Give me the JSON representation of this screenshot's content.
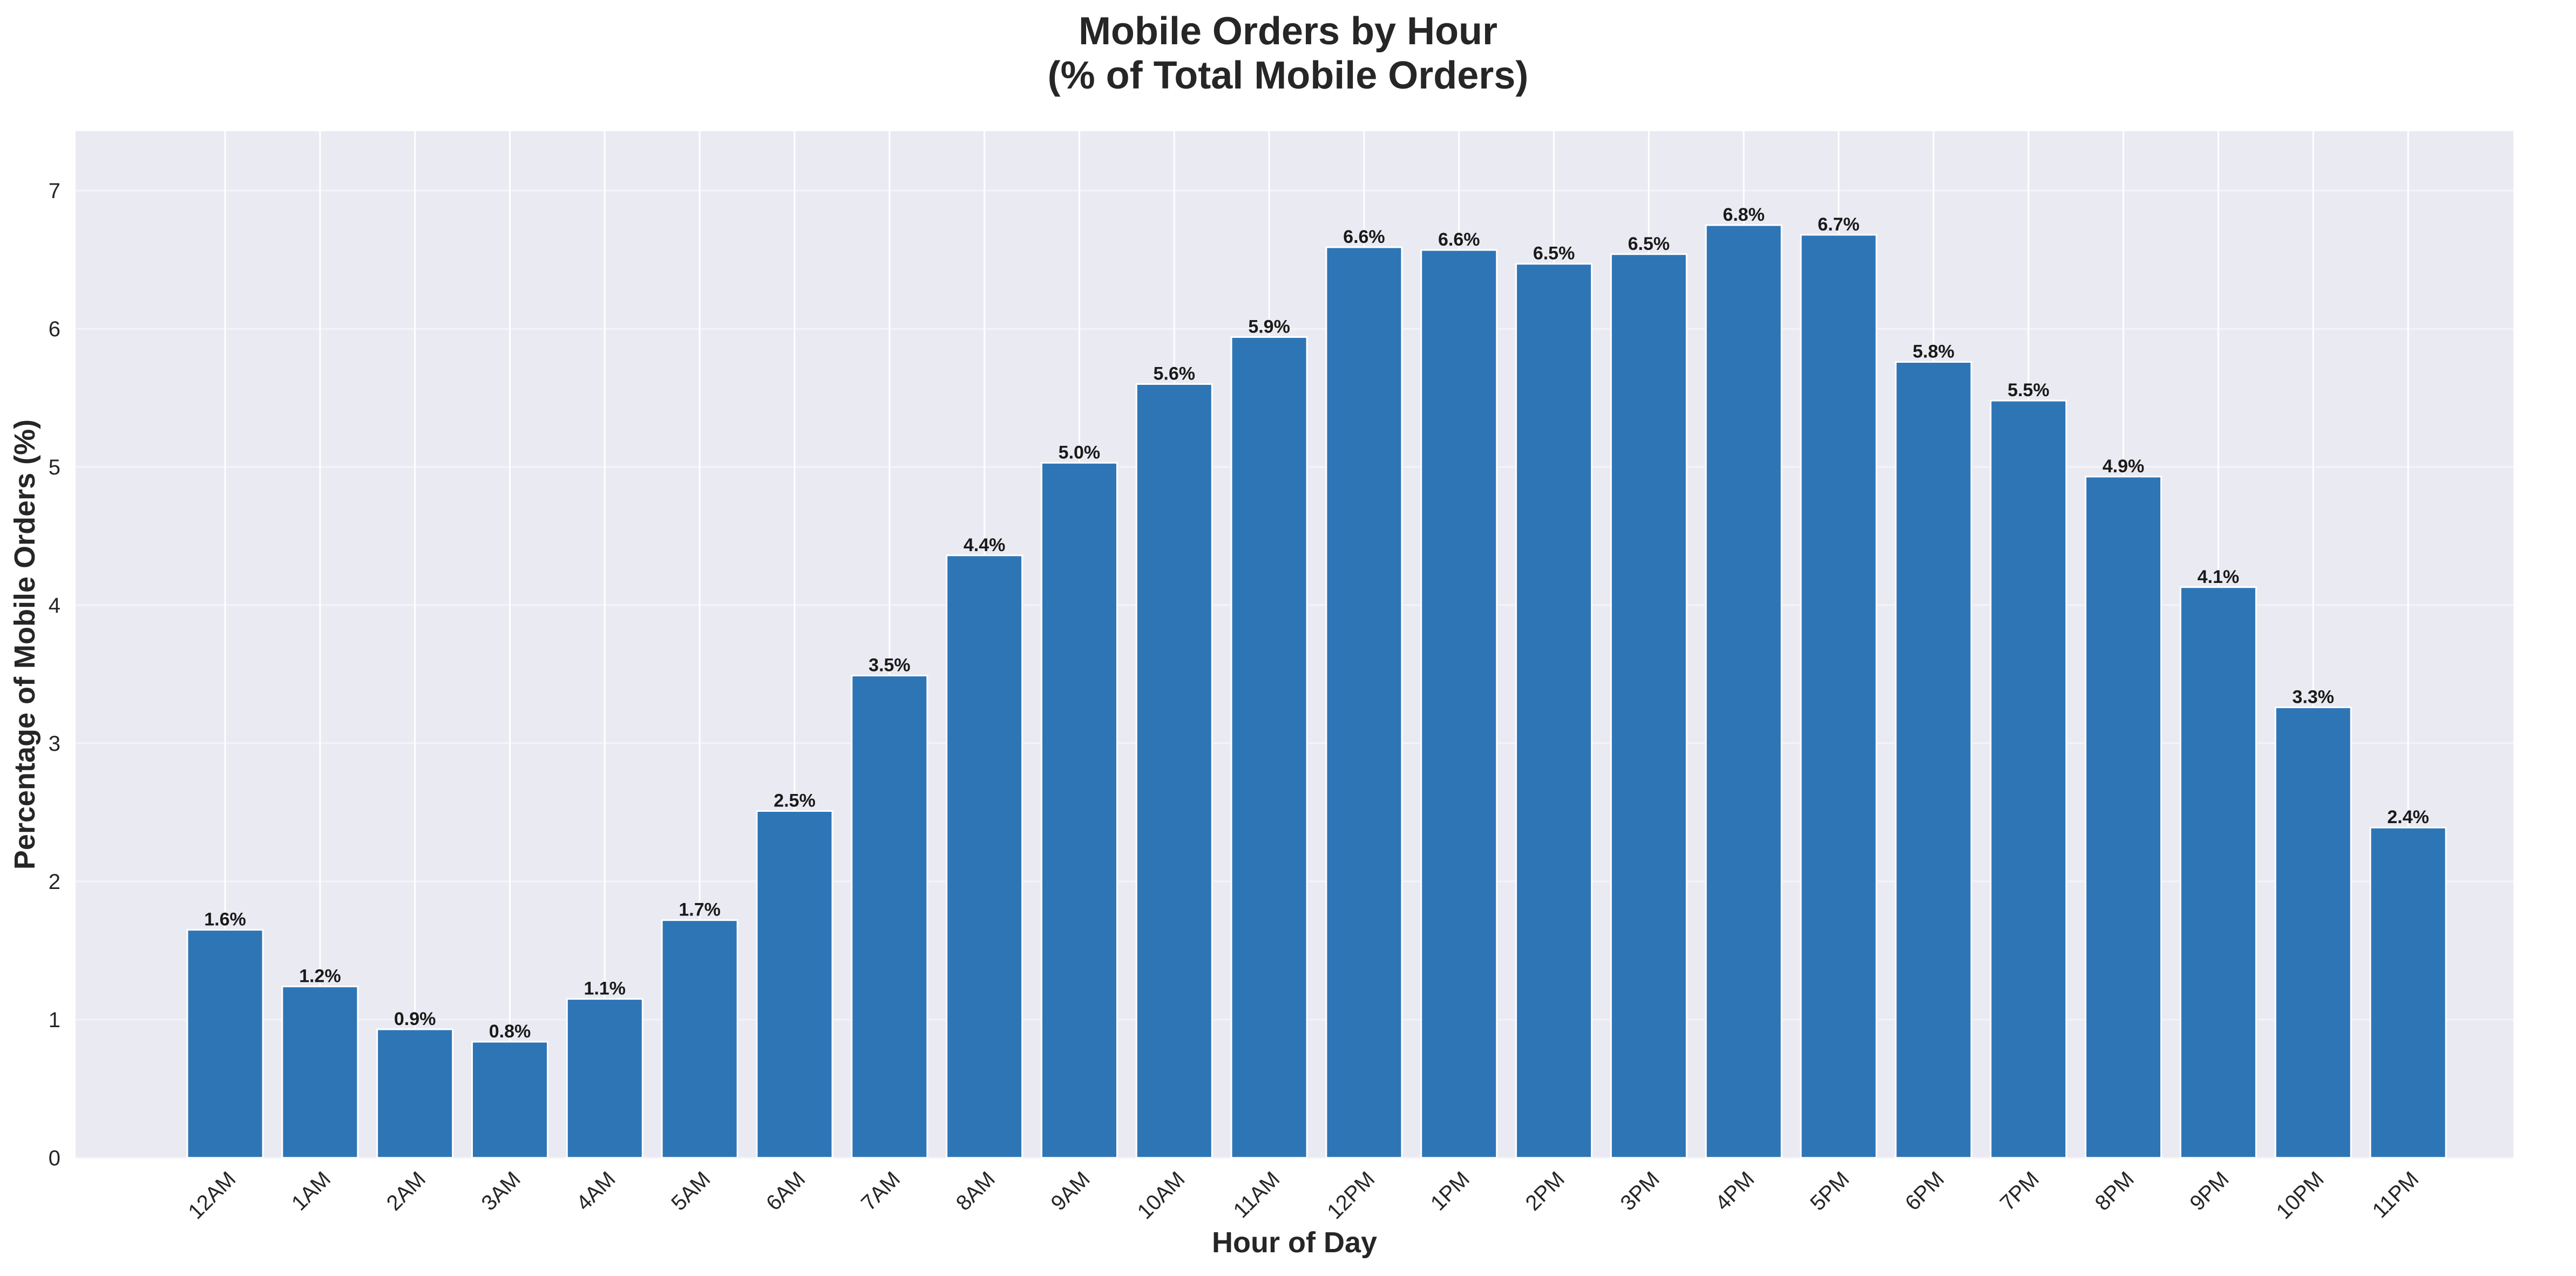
{
  "chart_data": {
    "type": "bar",
    "title_line1": "Mobile Orders by Hour",
    "title_line2": "(% of Total Mobile Orders)",
    "xlabel": "Hour of Day",
    "ylabel": "Percentage of Mobile Orders (%)",
    "categories": [
      "12AM",
      "1AM",
      "2AM",
      "3AM",
      "4AM",
      "5AM",
      "6AM",
      "7AM",
      "8AM",
      "9AM",
      "10AM",
      "11AM",
      "12PM",
      "1PM",
      "2PM",
      "3PM",
      "4PM",
      "5PM",
      "6PM",
      "7PM",
      "8PM",
      "9PM",
      "10PM",
      "11PM"
    ],
    "values": [
      1.65,
      1.24,
      0.93,
      0.84,
      1.15,
      1.72,
      2.51,
      3.49,
      4.36,
      5.03,
      5.6,
      5.94,
      6.59,
      6.57,
      6.47,
      6.54,
      6.75,
      6.68,
      5.76,
      5.48,
      4.93,
      4.13,
      3.26,
      2.39
    ],
    "data_labels": [
      "1.6%",
      "1.2%",
      "0.9%",
      "0.8%",
      "1.1%",
      "1.7%",
      "2.5%",
      "3.5%",
      "4.4%",
      "5.0%",
      "5.6%",
      "5.9%",
      "6.6%",
      "6.6%",
      "6.5%",
      "6.5%",
      "6.8%",
      "6.7%",
      "5.8%",
      "5.5%",
      "4.9%",
      "4.1%",
      "3.3%",
      "2.4%"
    ],
    "yticks": [
      0,
      1,
      2,
      3,
      4,
      5,
      6,
      7
    ],
    "ylim": [
      0,
      7.43
    ],
    "grid": true,
    "x_tick_rotation": 45,
    "colors": {
      "bar": "#2e75b6",
      "background": "#eaeaf2",
      "grid": "#ffffff"
    }
  }
}
